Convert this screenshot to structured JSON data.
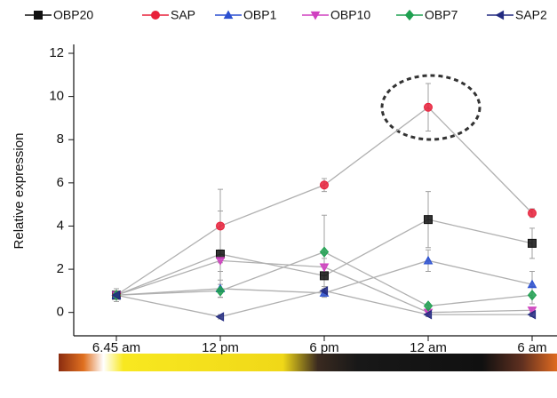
{
  "chart_data": {
    "type": "line",
    "y_label": "Relative expression",
    "categories": [
      "6.45 am",
      "12 pm",
      "6 pm",
      "12 am",
      "6 am"
    ],
    "ylim": [
      -1,
      12
    ],
    "yticks": [
      0,
      2,
      4,
      6,
      8,
      10,
      12
    ],
    "line_color": "#b0b0b0",
    "error_color": "#a0a0a0",
    "series": [
      {
        "name": "OBP20",
        "color": "#111111",
        "marker": "square",
        "values": [
          0.8,
          2.7,
          1.7,
          4.3,
          3.2
        ],
        "errors": [
          0.3,
          2.0,
          0.5,
          1.3,
          0.7
        ]
      },
      {
        "name": "SAP",
        "color": "#e8203a",
        "marker": "circle",
        "values": [
          0.8,
          4.0,
          5.9,
          9.5,
          4.6
        ],
        "errors": [
          0.3,
          1.7,
          0.3,
          1.1,
          0.2
        ]
      },
      {
        "name": "OBP1",
        "color": "#2a4fd0",
        "marker": "triangle-up",
        "values": [
          0.8,
          1.1,
          0.9,
          2.4,
          1.3
        ],
        "errors": [
          0.3,
          0.4,
          0.2,
          0.5,
          0.6
        ]
      },
      {
        "name": "OBP10",
        "color": "#d040c0",
        "marker": "triangle-down",
        "values": [
          0.8,
          2.4,
          2.1,
          0.0,
          0.1
        ],
        "errors": [
          0.3,
          0.5,
          0.4,
          0.1,
          0.1
        ]
      },
      {
        "name": "OBP7",
        "color": "#1fa050",
        "marker": "diamond",
        "values": [
          0.8,
          1.0,
          2.8,
          0.3,
          0.8
        ],
        "errors": [
          0.3,
          0.3,
          1.7,
          0.1,
          0.4
        ]
      },
      {
        "name": "SAP2",
        "color": "#222a80",
        "marker": "triangle-left",
        "values": [
          0.8,
          -0.2,
          1.0,
          -0.1,
          -0.1
        ],
        "errors": [
          0.3,
          0.1,
          0.2,
          0.1,
          0.1
        ]
      }
    ]
  }
}
